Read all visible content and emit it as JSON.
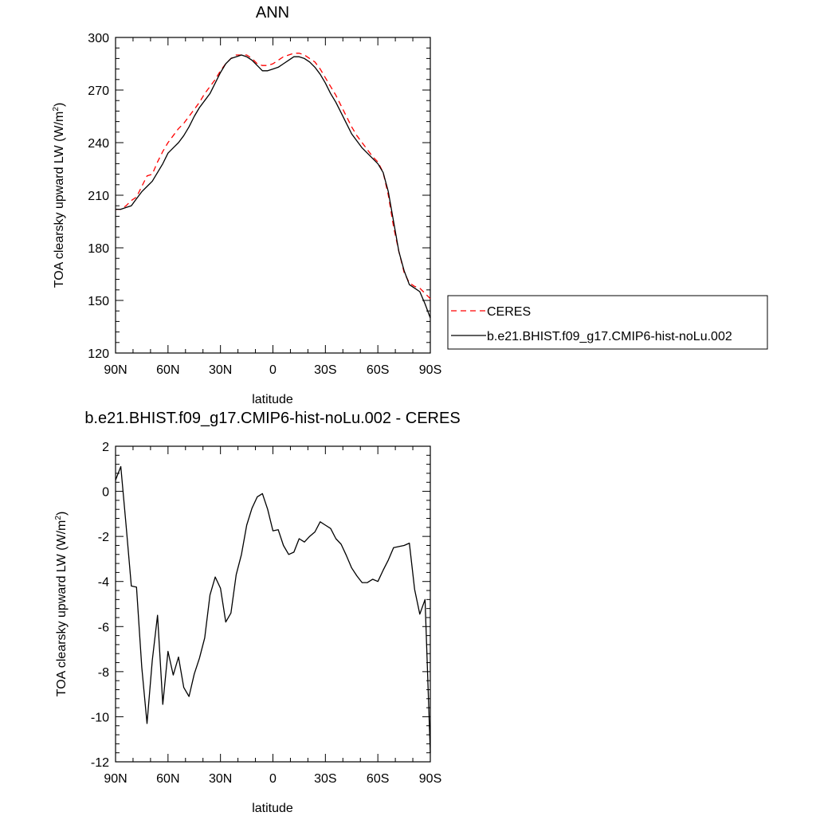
{
  "colors": {
    "model": "#000000",
    "obs": "#ff0000",
    "axis": "#000000",
    "background": "#ffffff"
  },
  "legend": {
    "items": [
      {
        "label": "CERES",
        "style": "dashed",
        "color": "#ff0000"
      },
      {
        "label": "b.e21.BHIST.f09_g17.CMIP6-hist-noLu.002",
        "style": "solid",
        "color": "#000000"
      }
    ],
    "placement": "right"
  },
  "chart_data": [
    {
      "type": "line",
      "title": "ANN",
      "xlabel": "latitude",
      "ylabel": "TOA clearsky upward LW (W/m",
      "ylabel_sup": "2",
      "ylabel_tail": ")",
      "xlim": [
        -90,
        90
      ],
      "ylim": [
        120,
        300
      ],
      "x_ticks": [
        -90,
        -60,
        -30,
        0,
        30,
        60,
        90
      ],
      "x_tick_labels": [
        "90N",
        "60N",
        "30N",
        "0",
        "30S",
        "60S",
        "90S"
      ],
      "y_ticks": [
        120,
        150,
        180,
        210,
        240,
        270,
        300
      ],
      "y_tick_labels": [
        "120",
        "150",
        "180",
        "210",
        "240",
        "270",
        "300"
      ],
      "series": [
        {
          "name": "CERES",
          "style": "dashed",
          "color": "#ff0000",
          "x": [
            -90,
            -87,
            -84,
            -81,
            -78,
            -75,
            -72,
            -69,
            -66,
            -63,
            -60,
            -57,
            -54,
            -51,
            -48,
            -45,
            -42,
            -39,
            -36,
            -33,
            -30,
            -27,
            -24,
            -21,
            -18,
            -15,
            -12,
            -9,
            -6,
            -3,
            0,
            3,
            6,
            9,
            12,
            15,
            18,
            21,
            24,
            27,
            30,
            33,
            36,
            39,
            42,
            45,
            48,
            51,
            54,
            57,
            60,
            63,
            66,
            69,
            72,
            75,
            78,
            81,
            84,
            87,
            90
          ],
          "y": [
            202,
            202,
            204,
            207,
            209,
            215,
            221,
            222,
            229,
            235,
            240,
            244,
            248,
            251,
            255,
            259,
            263,
            268,
            272,
            276,
            281,
            285,
            288,
            290,
            290,
            290,
            288,
            285,
            284,
            284,
            285,
            287,
            289,
            290,
            291,
            291,
            290,
            288,
            286,
            282,
            277,
            272,
            267,
            261,
            255,
            249,
            244,
            240,
            236,
            232,
            229,
            223,
            210,
            192,
            178,
            166,
            160,
            158,
            157,
            154,
            151
          ]
        },
        {
          "name": "b.e21.BHIST.f09_g17.CMIP6-hist-noLu.002",
          "style": "solid",
          "color": "#000000",
          "x": [
            -90,
            -87,
            -84,
            -81,
            -78,
            -75,
            -72,
            -69,
            -66,
            -63,
            -60,
            -57,
            -54,
            -51,
            -48,
            -45,
            -42,
            -39,
            -36,
            -33,
            -30,
            -27,
            -24,
            -21,
            -18,
            -15,
            -12,
            -9,
            -6,
            -3,
            0,
            3,
            6,
            9,
            12,
            15,
            18,
            21,
            24,
            27,
            30,
            33,
            36,
            39,
            42,
            45,
            48,
            51,
            54,
            57,
            60,
            63,
            66,
            69,
            72,
            75,
            78,
            81,
            84,
            87,
            90
          ],
          "y": [
            202,
            202,
            203,
            204,
            208,
            212,
            215,
            218,
            223,
            228,
            234,
            237,
            240,
            244,
            249,
            255,
            260,
            264,
            268,
            274,
            280,
            285,
            288,
            289,
            290,
            289,
            287,
            284,
            281,
            281,
            282,
            283,
            285,
            287,
            289,
            289,
            288,
            286,
            283,
            279,
            274,
            268,
            263,
            257,
            251,
            245,
            241,
            237,
            234,
            231,
            228,
            223,
            212,
            195,
            178,
            167,
            159,
            157,
            155,
            148,
            140
          ]
        }
      ]
    },
    {
      "type": "line",
      "title": "b.e21.BHIST.f09_g17.CMIP6-hist-noLu.002 - CERES",
      "xlabel": "latitude",
      "ylabel": "TOA clearsky upward LW (W/m",
      "ylabel_sup": "2",
      "ylabel_tail": ")",
      "xlim": [
        -90,
        90
      ],
      "ylim": [
        -12,
        2
      ],
      "x_ticks": [
        -90,
        -60,
        -30,
        0,
        30,
        60,
        90
      ],
      "x_tick_labels": [
        "90N",
        "60N",
        "30N",
        "0",
        "30S",
        "60S",
        "90S"
      ],
      "y_ticks": [
        -12,
        -10,
        -8,
        -6,
        -4,
        -2,
        0,
        2
      ],
      "y_tick_labels": [
        "-12",
        "-10",
        "-8",
        "-6",
        "-4",
        "-2",
        "0",
        "2"
      ],
      "series": [
        {
          "name": "b.e21.BHIST.f09_g17.CMIP6-hist-noLu.002 - CERES",
          "style": "solid",
          "color": "#000000",
          "x": [
            -90,
            -87,
            -84,
            -81,
            -78,
            -75,
            -72,
            -69,
            -66,
            -63,
            -60,
            -57,
            -54,
            -51,
            -48,
            -45,
            -42,
            -39,
            -36,
            -33,
            -30,
            -27,
            -24,
            -21,
            -18,
            -15,
            -12,
            -9,
            -6,
            -3,
            0,
            3,
            6,
            9,
            12,
            15,
            18,
            21,
            24,
            27,
            30,
            33,
            36,
            39,
            42,
            45,
            48,
            51,
            54,
            57,
            60,
            63,
            66,
            69,
            72,
            75,
            78,
            81,
            84,
            87,
            90
          ],
          "y": [
            0.5,
            1.1,
            -1.5,
            -4.2,
            -4.25,
            -7.8,
            -10.3,
            -7.5,
            -5.5,
            -9.45,
            -7.1,
            -8.15,
            -7.35,
            -8.7,
            -9.1,
            -8.1,
            -7.4,
            -6.5,
            -4.6,
            -3.8,
            -4.3,
            -5.8,
            -5.4,
            -3.7,
            -2.8,
            -1.5,
            -0.75,
            -0.25,
            -0.1,
            -0.8,
            -1.75,
            -1.7,
            -2.4,
            -2.8,
            -2.7,
            -2.1,
            -2.25,
            -2.0,
            -1.8,
            -1.35,
            -1.5,
            -1.65,
            -2.1,
            -2.35,
            -2.85,
            -3.4,
            -3.75,
            -4.05,
            -4.05,
            -3.9,
            -4.0,
            -3.5,
            -3.05,
            -2.5,
            -2.45,
            -2.4,
            -2.3,
            -4.35,
            -5.45,
            -4.8,
            -11.6
          ]
        }
      ]
    }
  ]
}
